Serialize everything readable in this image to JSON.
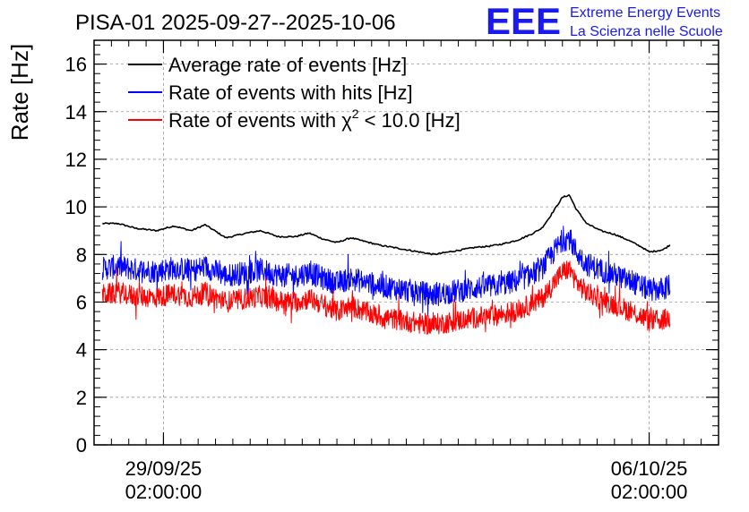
{
  "chart_data": {
    "type": "line",
    "title": "PISA-01 2025-09-27--2025-10-06",
    "xlabel": "",
    "ylabel": "Rate [Hz]",
    "ylim": [
      0,
      17
    ],
    "y_ticks": [
      0,
      2,
      4,
      6,
      8,
      10,
      12,
      14,
      16
    ],
    "x_domain_days": [
      0,
      9
    ],
    "x_ticks": [
      {
        "day": 1.0,
        "date": "29/09/25",
        "time": "02:00:00"
      },
      {
        "day": 8.0,
        "date": "06/10/25",
        "time": "02:00:00"
      }
    ],
    "grid": true,
    "legend_position": "top-left",
    "logo": {
      "mark": "EEE",
      "line1": "Extreme Energy Events",
      "line2": "La Scienza nelle Scuole",
      "color": "#1a1aee"
    },
    "series": [
      {
        "name": "Average rate of events [Hz]",
        "legend_text": "Average rate of events [Hz]",
        "color": "#000000",
        "noise": 0.0,
        "x": [
          0.12,
          0.35,
          0.6,
          0.9,
          1.15,
          1.4,
          1.6,
          1.9,
          2.2,
          2.4,
          2.65,
          2.9,
          3.1,
          3.3,
          3.5,
          3.7,
          3.9,
          4.1,
          4.3,
          4.5,
          4.7,
          4.9,
          5.1,
          5.3,
          5.5,
          5.7,
          5.9,
          6.1,
          6.3,
          6.45,
          6.55,
          6.65,
          6.75,
          6.85,
          6.95,
          7.1,
          7.3,
          7.5,
          7.7,
          7.9,
          8.0,
          8.2,
          8.3
        ],
        "y": [
          9.3,
          9.3,
          9.1,
          9.0,
          9.2,
          9.0,
          9.25,
          8.7,
          8.9,
          9.0,
          8.75,
          8.75,
          8.9,
          8.65,
          8.5,
          8.7,
          8.55,
          8.4,
          8.3,
          8.2,
          8.1,
          8.0,
          8.1,
          8.2,
          8.3,
          8.35,
          8.45,
          8.6,
          8.85,
          9.1,
          9.5,
          9.95,
          10.4,
          10.5,
          9.9,
          9.3,
          9.0,
          8.85,
          8.6,
          8.3,
          8.1,
          8.2,
          8.4
        ]
      },
      {
        "name": "Rate of events with hits [Hz]",
        "legend_text": "Rate of events with hits [Hz]",
        "color": "#0000ff",
        "noise": 0.5,
        "x": [
          0.12,
          0.35,
          0.6,
          0.9,
          1.15,
          1.4,
          1.6,
          1.9,
          2.2,
          2.4,
          2.65,
          2.9,
          3.1,
          3.3,
          3.5,
          3.7,
          3.9,
          4.1,
          4.3,
          4.5,
          4.7,
          4.9,
          5.1,
          5.3,
          5.5,
          5.7,
          5.9,
          6.1,
          6.3,
          6.45,
          6.55,
          6.65,
          6.75,
          6.85,
          6.95,
          7.1,
          7.3,
          7.5,
          7.7,
          7.9,
          8.0,
          8.2,
          8.3
        ],
        "y": [
          7.4,
          7.5,
          7.35,
          7.3,
          7.45,
          7.3,
          7.5,
          7.1,
          7.25,
          7.35,
          7.15,
          7.1,
          7.25,
          7.0,
          6.8,
          7.0,
          6.85,
          6.7,
          6.6,
          6.5,
          6.4,
          6.3,
          6.4,
          6.5,
          6.6,
          6.65,
          6.75,
          6.9,
          7.15,
          7.4,
          7.8,
          8.2,
          8.6,
          8.7,
          8.1,
          7.6,
          7.35,
          7.15,
          6.9,
          6.65,
          6.5,
          6.55,
          6.7
        ]
      },
      {
        "name": "Rate of events with chi2 < 10.0 [Hz]",
        "legend_text": "Rate of events with χ",
        "legend_sup": "2",
        "legend_tail": " < 10.0 [Hz]",
        "color": "#ff0000",
        "noise": 0.45,
        "x": [
          0.12,
          0.35,
          0.6,
          0.9,
          1.15,
          1.4,
          1.6,
          1.9,
          2.2,
          2.4,
          2.65,
          2.9,
          3.1,
          3.3,
          3.5,
          3.7,
          3.9,
          4.1,
          4.3,
          4.5,
          4.7,
          4.9,
          5.1,
          5.3,
          5.5,
          5.7,
          5.9,
          6.1,
          6.3,
          6.45,
          6.55,
          6.65,
          6.75,
          6.85,
          6.95,
          7.1,
          7.3,
          7.5,
          7.7,
          7.9,
          8.0,
          8.2,
          8.3
        ],
        "y": [
          6.3,
          6.4,
          6.25,
          6.2,
          6.35,
          6.2,
          6.4,
          6.0,
          6.15,
          6.25,
          6.05,
          6.0,
          6.15,
          5.9,
          5.6,
          5.85,
          5.6,
          5.4,
          5.3,
          5.2,
          5.1,
          5.05,
          5.15,
          5.25,
          5.35,
          5.4,
          5.5,
          5.65,
          5.9,
          6.15,
          6.5,
          6.9,
          7.25,
          7.4,
          6.85,
          6.4,
          6.1,
          5.9,
          5.65,
          5.4,
          5.2,
          5.25,
          5.35
        ]
      }
    ]
  }
}
